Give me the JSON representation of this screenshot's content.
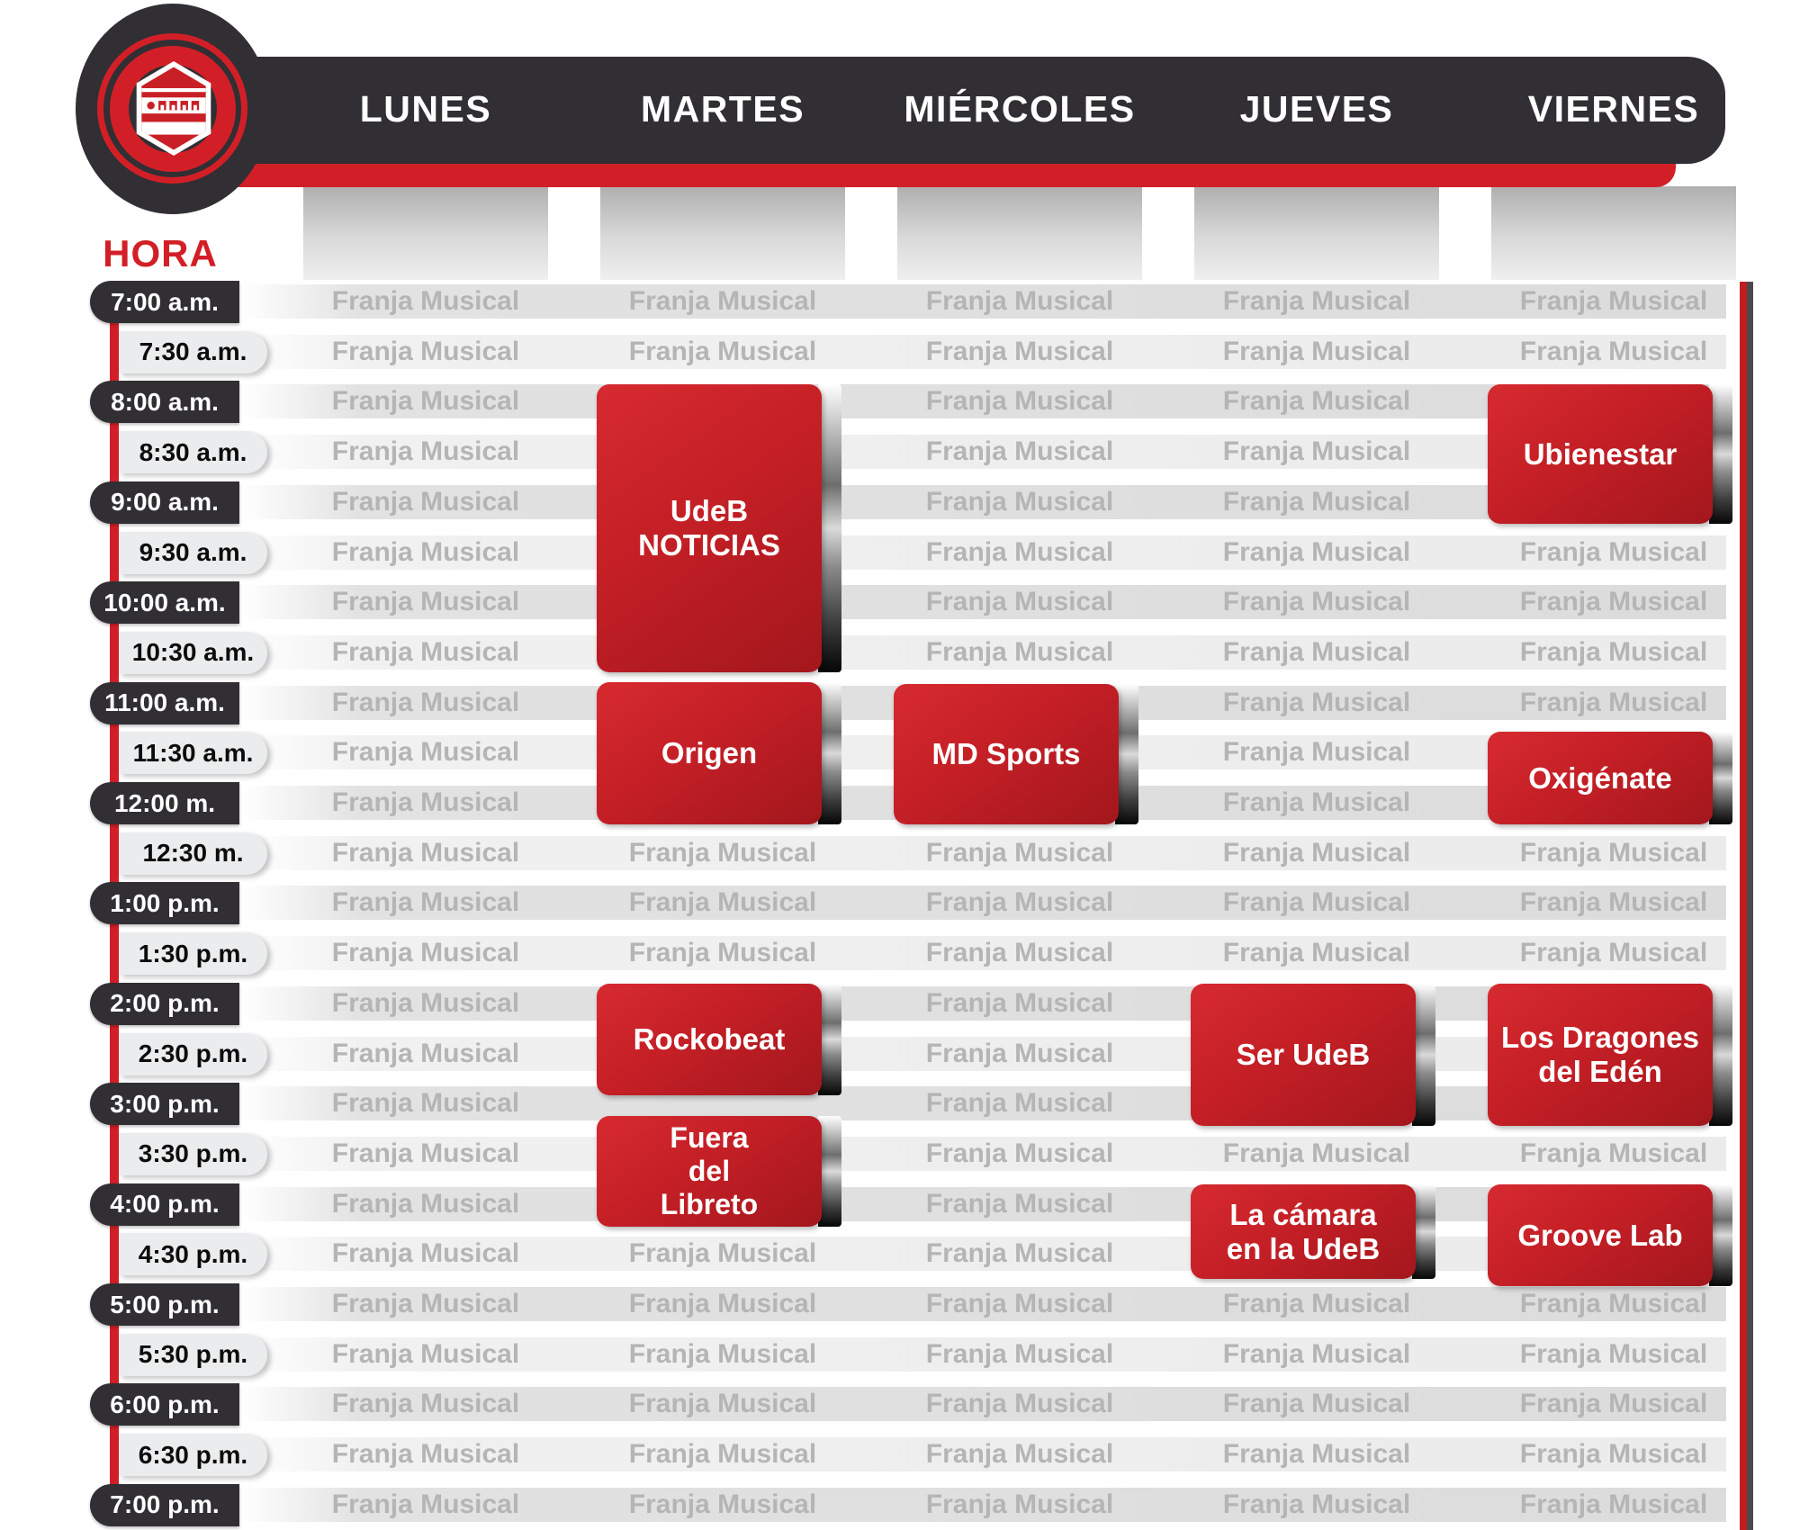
{
  "header": {
    "hora_label": "HORA",
    "days": [
      "LUNES",
      "MARTES",
      "MIÉRCOLES",
      "JUEVES",
      "VIERNES"
    ]
  },
  "logo": {
    "icon": "station-hex-badge-icon"
  },
  "schedule": {
    "filler_label": "Franja Musical",
    "time_slots": [
      "7:00 a.m.",
      "7:30 a.m.",
      "8:00 a.m.",
      "8:30 a.m.",
      "9:00 a.m.",
      "9:30 a.m.",
      "10:00 a.m.",
      "10:30 a.m.",
      "11:00 a.m.",
      "11:30 a.m.",
      "12:00 m.",
      "12:30 m.",
      "1:00 p.m.",
      "1:30 p.m.",
      "2:00 p.m.",
      "2:30 p.m.",
      "3:00 p.m.",
      "3:30 p.m.",
      "4:00 p.m.",
      "4:30 p.m.",
      "5:00 p.m.",
      "5:30 p.m.",
      "6:00 p.m.",
      "6:30 p.m.",
      "7:00 p.m."
    ],
    "programs": [
      {
        "id": "udeb-noticias",
        "name": "UdeB NOTICIAS",
        "lines": [
          "UdeB",
          "NOTICIAS"
        ],
        "day": "MARTES",
        "start": "8:00 a.m.",
        "end": "11:00 a.m."
      },
      {
        "id": "origen",
        "name": "Origen",
        "lines": [
          "Origen"
        ],
        "day": "MARTES",
        "start": "11:00 a.m.",
        "end": "12:30 m."
      },
      {
        "id": "rockobeat",
        "name": "Rockobeat",
        "lines": [
          "Rockobeat"
        ],
        "day": "MARTES",
        "start": "2:00 p.m.",
        "end": "3:00 p.m."
      },
      {
        "id": "fuera-del-libreto",
        "name": "Fuera del Libreto",
        "lines": [
          "Fuera",
          "del",
          "Libreto"
        ],
        "day": "MARTES",
        "start": "3:30 p.m.",
        "end": "4:30 p.m."
      },
      {
        "id": "md-sports",
        "name": "MD Sports",
        "lines": [
          "MD Sports"
        ],
        "day": "MIÉRCOLES",
        "start": "11:00 a.m.",
        "end": "12:30 m."
      },
      {
        "id": "ser-udeb",
        "name": "Ser UdeB",
        "lines": [
          "Ser UdeB"
        ],
        "day": "JUEVES",
        "start": "2:00 p.m.",
        "end": "3:30 p.m."
      },
      {
        "id": "la-camara",
        "name": "La cámara en la UdeB",
        "lines": [
          "La cámara",
          "en la UdeB"
        ],
        "day": "JUEVES",
        "start": "4:00 p.m.",
        "end": "5:00 p.m."
      },
      {
        "id": "ubienestar",
        "name": "Ubienestar",
        "lines": [
          "Ubienestar"
        ],
        "day": "VIERNES",
        "start": "8:00 a.m.",
        "end": "9:30 a.m."
      },
      {
        "id": "oxigenate",
        "name": "Oxigénate",
        "lines": [
          "Oxigénate"
        ],
        "day": "VIERNES",
        "start": "11:30 a.m.",
        "end": "12:30 m."
      },
      {
        "id": "los-dragones",
        "name": "Los Dragones del Edén",
        "lines": [
          "Los Dragones",
          "del Edén"
        ],
        "day": "VIERNES",
        "start": "2:00 p.m.",
        "end": "3:30 p.m."
      },
      {
        "id": "groove-lab",
        "name": "Groove Lab",
        "lines": [
          "Groove Lab"
        ],
        "day": "VIERNES",
        "start": "4:00 p.m.",
        "end": "5:00 p.m."
      }
    ]
  },
  "colors": {
    "accent_red": "#d21f27",
    "header_dark": "#312f33",
    "filler_text": "#b5b5b5",
    "stripe_hour": "#dcdcdc",
    "stripe_half": "#ebebeb"
  }
}
